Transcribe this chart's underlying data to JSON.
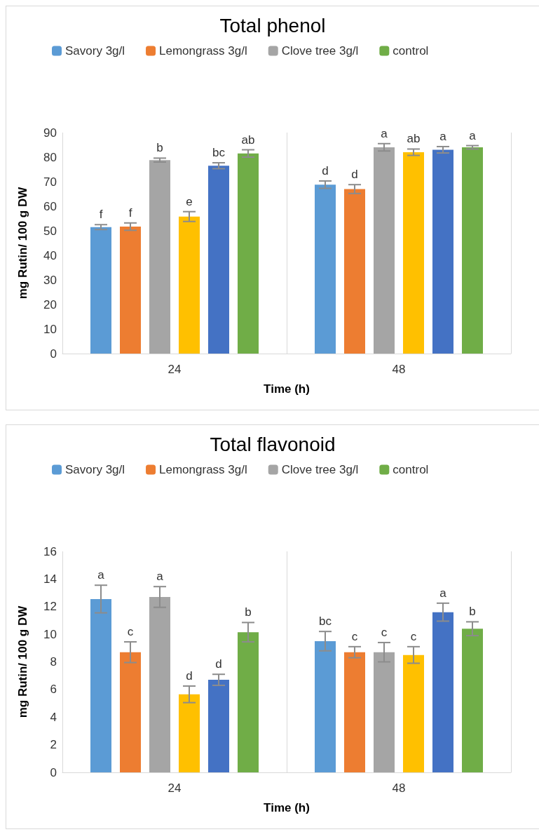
{
  "chart_data": [
    {
      "type": "bar",
      "title": "Total phenol",
      "xlabel": "Time (h)",
      "ylabel": "mg Rutin/ 100 g DW",
      "categories": [
        "24",
        "48"
      ],
      "ylim": [
        0,
        90
      ],
      "yticks": [
        0,
        10,
        20,
        30,
        40,
        50,
        60,
        70,
        80,
        90
      ],
      "grid": "x",
      "legend": "top",
      "series": [
        {
          "name": "Savory 3g/l",
          "color": "#5b9bd5",
          "values": [
            51.5,
            68.8
          ],
          "errors": [
            1,
            1.5
          ],
          "value_labels": [
            "f",
            "d"
          ]
        },
        {
          "name": "Lemongrass 3g/l",
          "color": "#ed7d31",
          "values": [
            51.7,
            67
          ],
          "errors": [
            1.5,
            1.8
          ],
          "value_labels": [
            "f",
            "d"
          ]
        },
        {
          "name": "Clove tree 3g/l",
          "color": "#a5a5a5",
          "values": [
            78.8,
            84
          ],
          "errors": [
            0.8,
            1.5
          ],
          "value_labels": [
            "b",
            "a"
          ]
        },
        {
          "color": "#ffc000",
          "values": [
            55.8,
            82
          ],
          "errors": [
            2,
            1.3
          ],
          "value_labels": [
            "e",
            "ab"
          ]
        },
        {
          "color": "#4472c4",
          "values": [
            76.5,
            83
          ],
          "errors": [
            1.2,
            1.3
          ],
          "value_labels": [
            "bc",
            "a"
          ]
        },
        {
          "name": "control",
          "color": "#70ad47",
          "values": [
            81.5,
            84
          ],
          "errors": [
            1.5,
            0.7
          ],
          "value_labels": [
            "ab",
            "a"
          ]
        }
      ]
    },
    {
      "type": "bar",
      "title": "Total flavonoid",
      "xlabel": "Time (h)",
      "ylabel": "mg Rutin/ 100 g DW",
      "categories": [
        "24",
        "48"
      ],
      "ylim": [
        0,
        16
      ],
      "yticks": [
        0,
        2,
        4,
        6,
        8,
        10,
        12,
        14,
        16
      ],
      "grid": "x",
      "legend": "top",
      "series": [
        {
          "name": "Savory 3g/l",
          "color": "#5b9bd5",
          "values": [
            12.55,
            9.5
          ],
          "errors": [
            1,
            0.7
          ],
          "value_labels": [
            "a",
            "bc"
          ]
        },
        {
          "name": "Lemongrass 3g/l",
          "color": "#ed7d31",
          "values": [
            8.7,
            8.7
          ],
          "errors": [
            0.75,
            0.4
          ],
          "value_labels": [
            "c",
            "c"
          ]
        },
        {
          "name": "Clove tree 3g/l",
          "color": "#a5a5a5",
          "values": [
            12.7,
            8.7
          ],
          "errors": [
            0.75,
            0.7
          ],
          "value_labels": [
            "a",
            "c"
          ]
        },
        {
          "color": "#ffc000",
          "values": [
            5.65,
            8.5
          ],
          "errors": [
            0.6,
            0.6
          ],
          "value_labels": [
            "d",
            "c"
          ]
        },
        {
          "color": "#4472c4",
          "values": [
            6.7,
            11.6
          ],
          "errors": [
            0.4,
            0.65
          ],
          "value_labels": [
            "d",
            "a"
          ]
        },
        {
          "name": "control",
          "color": "#70ad47",
          "values": [
            10.15,
            10.4
          ],
          "errors": [
            0.7,
            0.5
          ],
          "value_labels": [
            "b",
            "b"
          ]
        }
      ]
    }
  ]
}
